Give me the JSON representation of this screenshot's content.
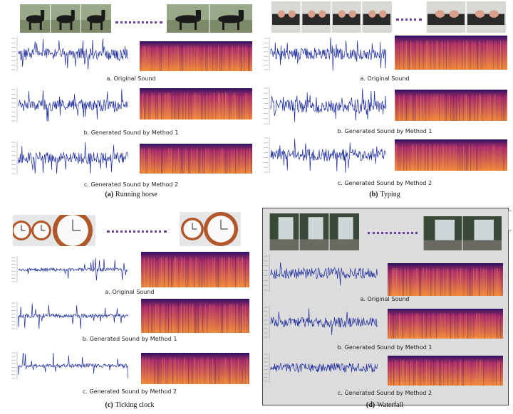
{
  "panels": [
    {
      "id": "a",
      "caption_letter": "(a)",
      "caption_text": "Running horse",
      "rows": [
        {
          "label": "a. Original Sound"
        },
        {
          "label": "b. Generated Sound by Method 1"
        },
        {
          "label": "c. Generated Sound by Method 2"
        }
      ]
    },
    {
      "id": "b",
      "caption_letter": "(b)",
      "caption_text": "Typing",
      "rows": [
        {
          "label": "a. Original Sound"
        },
        {
          "label": "b. Generated Sound by Method 1"
        },
        {
          "label": "c. Generated Sound by Method 2"
        }
      ]
    },
    {
      "id": "c",
      "caption_letter": "(c)",
      "caption_text": "Ticking clock",
      "rows": [
        {
          "label": "a. Original Sound"
        },
        {
          "label": "b. Generated Sound by Method 1"
        },
        {
          "label": "c. Generated Sound by Method 2"
        }
      ]
    },
    {
      "id": "d",
      "caption_letter": "(d)",
      "caption_text": "Waterfall",
      "rows": [
        {
          "label": "a. Original Sound"
        },
        {
          "label": "b. Generated Sound by Method 1"
        },
        {
          "label": "c. Generated Sound by Method 2"
        }
      ]
    }
  ],
  "colors": {
    "waveform": "#1a2a9c",
    "dots": "#6b3fa0",
    "spec_dark": "#2a1060",
    "spec_mid": "#b0306a",
    "spec_bright": "#f08a3a"
  }
}
